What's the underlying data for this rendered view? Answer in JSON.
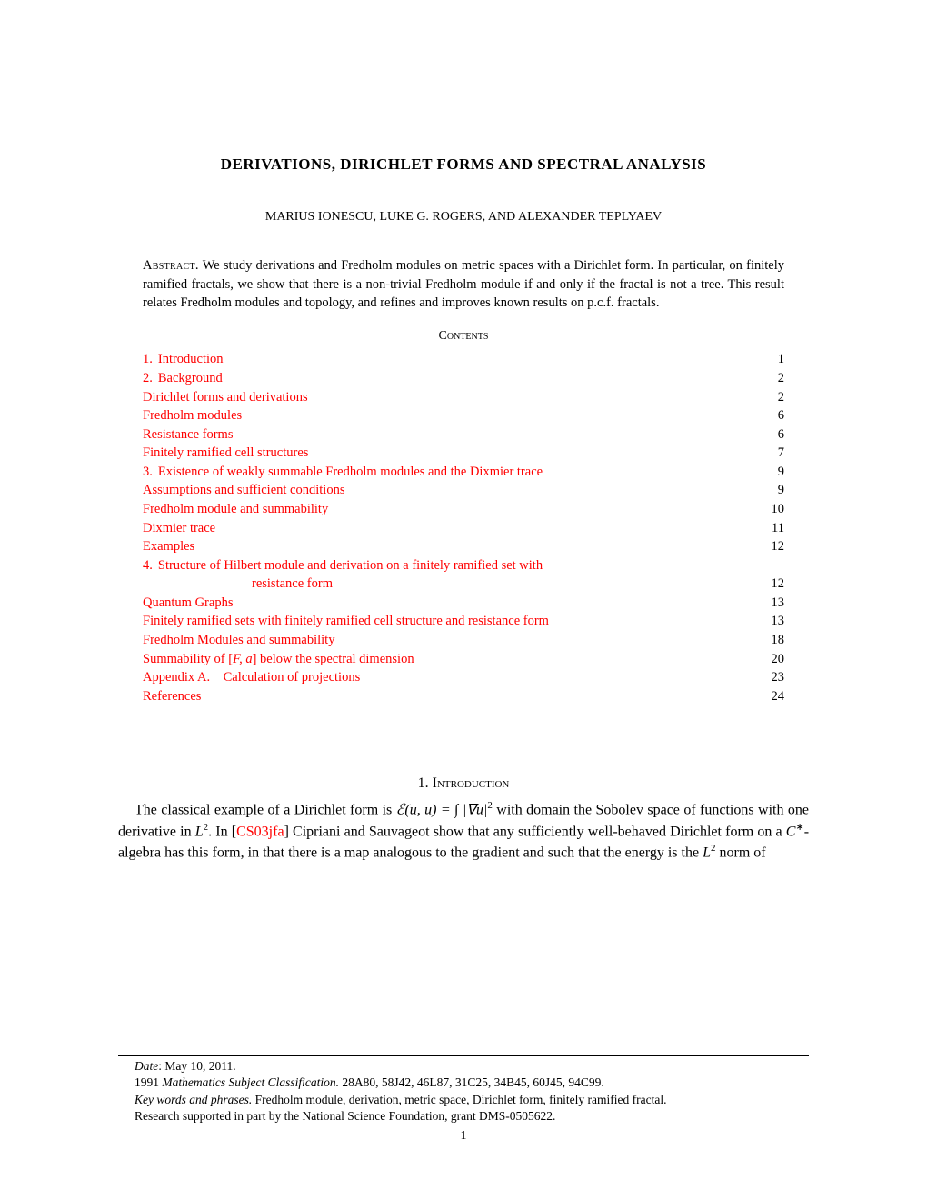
{
  "title": "DERIVATIONS, DIRICHLET FORMS AND SPECTRAL ANALYSIS",
  "authors": "MARIUS IONESCU, LUKE G. ROGERS, AND ALEXANDER TEPLYAEV",
  "abstract": {
    "label": "Abstract.",
    "text": "We study derivations and Fredholm modules on metric spaces with a Dirichlet form. In particular, on finitely ramified fractals, we show that there is a non-trivial Fredholm module if and only if the fractal is not a tree. This result relates Fredholm modules and topology, and refines and improves known results on p.c.f. fractals."
  },
  "contents": {
    "header": "Contents",
    "items": [
      {
        "number": "1.",
        "label": "Introduction",
        "page": "1"
      },
      {
        "number": "2.",
        "label": "Background",
        "page": "2"
      },
      {
        "number": "",
        "label": "Dirichlet forms and derivations",
        "page": "2"
      },
      {
        "number": "",
        "label": "Fredholm modules",
        "page": "6"
      },
      {
        "number": "",
        "label": "Resistance forms",
        "page": "6"
      },
      {
        "number": "",
        "label": "Finitely ramified cell structures",
        "page": "7"
      },
      {
        "number": "3.",
        "label": "Existence of weakly summable Fredholm modules and the Dixmier trace",
        "page": "9"
      },
      {
        "number": "",
        "label": "Assumptions and sufficient conditions",
        "page": "9"
      },
      {
        "number": "",
        "label": "Fredholm module and summability",
        "page": "10"
      },
      {
        "number": "",
        "label": "Dixmier trace",
        "page": "11"
      },
      {
        "number": "",
        "label": "Examples",
        "page": "12"
      },
      {
        "number": "4.",
        "label": "Structure of Hilbert module and derivation on a finitely ramified set with",
        "cont": "resistance form",
        "page": "12"
      },
      {
        "number": "",
        "label": "Quantum Graphs",
        "page": "13"
      },
      {
        "number": "",
        "label": "Finitely ramified sets with finitely ramified cell structure and resistance form",
        "page": "13"
      },
      {
        "number": "",
        "label": "Fredholm Modules and summability",
        "page": "18"
      },
      {
        "number": "",
        "label": "Summability of [F, a] below the spectral dimension",
        "page": "20"
      },
      {
        "number": "",
        "label": "Appendix A. Calculation of projections",
        "page": "23"
      },
      {
        "number": "",
        "label": "References",
        "page": "24"
      }
    ]
  },
  "section1": {
    "number": "1.",
    "name": "Introduction",
    "para_prefix": "The classical example of a Dirichlet form is ",
    "formula_part1": "ℰ(u, u) = ∫ |∇u|",
    "formula_sup": "2",
    "para_mid1": " with domain the Sobolev space of functions with one derivative in ",
    "L2": "L",
    "L2_sup": "2",
    "para_mid2": ". In [",
    "cite": "CS03jfa",
    "para_mid3": "] Cipriani and Sauvageot show that any sufficiently well-behaved Dirichlet form on a ",
    "Cstar": "C",
    "Cstar_sup": "∗",
    "para_suffix": "-algebra has this form, in that there is a map analogous to the gradient and such that the energy is the ",
    "L2b": "L",
    "L2b_sup": "2",
    "para_end": " norm of"
  },
  "footnotes": {
    "date_label": "Date",
    "date_value": ": May 10, 2011.",
    "msc_label": "Mathematics Subject Classification.",
    "msc_prefix": "1991 ",
    "msc_value": " 28A80, 58J42, 46L87, 31C25, 34B45, 60J45, 94C99.",
    "keywords_label": "Key words and phrases.",
    "keywords_value": " Fredholm module, derivation, metric space, Dirichlet form, finitely ramified fractal.",
    "funding": "Research supported in part by the National Science Foundation, grant DMS-0505622."
  },
  "page_number": "1"
}
